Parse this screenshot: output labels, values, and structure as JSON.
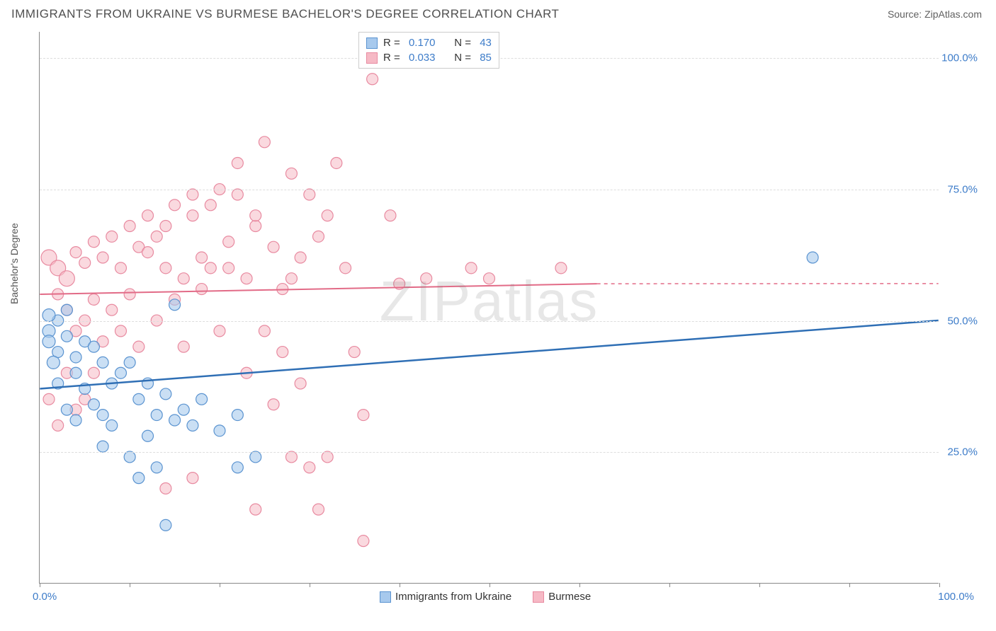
{
  "header": {
    "title": "IMMIGRANTS FROM UKRAINE VS BURMESE BACHELOR'S DEGREE CORRELATION CHART",
    "source": "Source: ZipAtlas.com"
  },
  "chart": {
    "type": "scatter",
    "ylabel": "Bachelor's Degree",
    "xlim": [
      0,
      100
    ],
    "ylim": [
      0,
      105
    ],
    "xtick_positions": [
      0,
      10,
      20,
      30,
      40,
      50,
      60,
      70,
      80,
      90,
      100
    ],
    "xtick_labels": {
      "left": "0.0%",
      "right": "100.0%"
    },
    "ytick_positions": [
      25,
      50,
      75,
      100
    ],
    "ytick_labels": [
      "25.0%",
      "50.0%",
      "75.0%",
      "100.0%"
    ],
    "grid_color": "#dddddd",
    "background_color": "#ffffff",
    "axis_color": "#888888",
    "watermark": "ZIPatlas",
    "series": [
      {
        "name": "Immigrants from Ukraine",
        "fill_color": "#a7c9ed",
        "fill_opacity": 0.6,
        "stroke_color": "#5a93d0",
        "line_color": "#2f6fb5",
        "R": "0.170",
        "N": "43",
        "regression": {
          "x1": 0,
          "y1": 37,
          "x2": 100,
          "y2": 50,
          "dash_from": 100
        },
        "points": [
          [
            1,
            48
          ],
          [
            1,
            46
          ],
          [
            2,
            44
          ],
          [
            1.5,
            42
          ],
          [
            3,
            47
          ],
          [
            2,
            50
          ],
          [
            3,
            52
          ],
          [
            1,
            51
          ],
          [
            2,
            38
          ],
          [
            4,
            43
          ],
          [
            5,
            46
          ],
          [
            4,
            40
          ],
          [
            6,
            45
          ],
          [
            5,
            37
          ],
          [
            7,
            42
          ],
          [
            8,
            38
          ],
          [
            6,
            34
          ],
          [
            7,
            32
          ],
          [
            3,
            33
          ],
          [
            4,
            31
          ],
          [
            9,
            40
          ],
          [
            10,
            42
          ],
          [
            11,
            35
          ],
          [
            12,
            38
          ],
          [
            8,
            30
          ],
          [
            7,
            26
          ],
          [
            10,
            24
          ],
          [
            13,
            32
          ],
          [
            14,
            36
          ],
          [
            15,
            31
          ],
          [
            12,
            28
          ],
          [
            13,
            22
          ],
          [
            16,
            33
          ],
          [
            17,
            30
          ],
          [
            18,
            35
          ],
          [
            11,
            20
          ],
          [
            20,
            29
          ],
          [
            22,
            32
          ],
          [
            24,
            24
          ],
          [
            22,
            22
          ],
          [
            14,
            11
          ],
          [
            15,
            53
          ],
          [
            86,
            62
          ]
        ]
      },
      {
        "name": "Burmese",
        "fill_color": "#f6b9c5",
        "fill_opacity": 0.55,
        "stroke_color": "#e88aa0",
        "line_color": "#e26b87",
        "R": "0.033",
        "N": "85",
        "regression": {
          "x1": 0,
          "y1": 55,
          "x2": 62,
          "y2": 57,
          "dash_from": 62
        },
        "points": [
          [
            1,
            62
          ],
          [
            2,
            60
          ],
          [
            3,
            58
          ],
          [
            2,
            55
          ],
          [
            4,
            63
          ],
          [
            5,
            61
          ],
          [
            3,
            52
          ],
          [
            6,
            65
          ],
          [
            4,
            48
          ],
          [
            7,
            62
          ],
          [
            8,
            66
          ],
          [
            5,
            50
          ],
          [
            9,
            60
          ],
          [
            6,
            54
          ],
          [
            10,
            68
          ],
          [
            7,
            46
          ],
          [
            11,
            64
          ],
          [
            8,
            52
          ],
          [
            12,
            70
          ],
          [
            9,
            48
          ],
          [
            13,
            66
          ],
          [
            10,
            55
          ],
          [
            14,
            60
          ],
          [
            11,
            45
          ],
          [
            15,
            72
          ],
          [
            12,
            63
          ],
          [
            16,
            58
          ],
          [
            13,
            50
          ],
          [
            17,
            74
          ],
          [
            14,
            68
          ],
          [
            18,
            62
          ],
          [
            15,
            54
          ],
          [
            19,
            60
          ],
          [
            16,
            45
          ],
          [
            20,
            75
          ],
          [
            17,
            70
          ],
          [
            21,
            65
          ],
          [
            18,
            56
          ],
          [
            22,
            80
          ],
          [
            19,
            72
          ],
          [
            23,
            58
          ],
          [
            20,
            48
          ],
          [
            24,
            68
          ],
          [
            21,
            60
          ],
          [
            25,
            84
          ],
          [
            22,
            74
          ],
          [
            26,
            64
          ],
          [
            23,
            40
          ],
          [
            27,
            56
          ],
          [
            24,
            70
          ],
          [
            28,
            78
          ],
          [
            25,
            48
          ],
          [
            29,
            62
          ],
          [
            26,
            34
          ],
          [
            30,
            74
          ],
          [
            27,
            44
          ],
          [
            31,
            66
          ],
          [
            28,
            58
          ],
          [
            32,
            70
          ],
          [
            29,
            38
          ],
          [
            33,
            80
          ],
          [
            30,
            22
          ],
          [
            34,
            60
          ],
          [
            35,
            44
          ],
          [
            36,
            32
          ],
          [
            37,
            96
          ],
          [
            40,
            57
          ],
          [
            39,
            70
          ],
          [
            43,
            58
          ],
          [
            48,
            60
          ],
          [
            50,
            58
          ],
          [
            58,
            60
          ],
          [
            36,
            8
          ],
          [
            31,
            14
          ],
          [
            17,
            20
          ],
          [
            14,
            18
          ],
          [
            5,
            35
          ],
          [
            3,
            40
          ],
          [
            1,
            35
          ],
          [
            2,
            30
          ],
          [
            4,
            33
          ],
          [
            6,
            40
          ],
          [
            24,
            14
          ],
          [
            28,
            24
          ],
          [
            32,
            24
          ]
        ]
      }
    ]
  },
  "legend_bottom": [
    {
      "label": "Immigrants from Ukraine",
      "fill": "#a7c9ed",
      "stroke": "#5a93d0"
    },
    {
      "label": "Burmese",
      "fill": "#f6b9c5",
      "stroke": "#e88aa0"
    }
  ],
  "legend_colors": {
    "text_dark": "#333333",
    "value_color": "#3d7cc9"
  }
}
